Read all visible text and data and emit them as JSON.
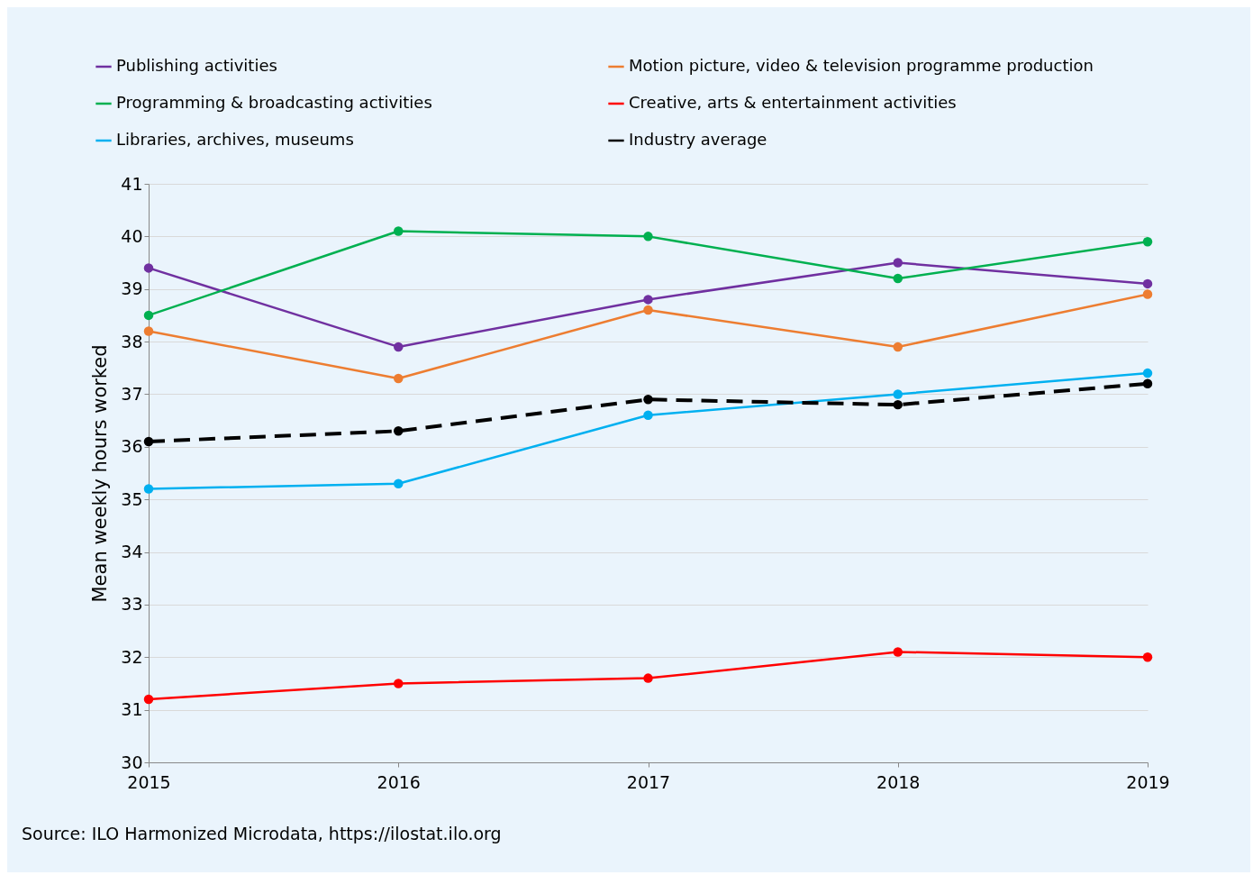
{
  "chart_data": {
    "type": "line",
    "ylabel": "Mean weekly hours worked",
    "x": [
      2015,
      2016,
      2017,
      2018,
      2019
    ],
    "xlim": [
      2015,
      2019
    ],
    "xticks": [
      2015,
      2016,
      2017,
      2018,
      2019
    ],
    "ylim": [
      30,
      41
    ],
    "yticks": [
      30,
      31,
      32,
      33,
      34,
      35,
      36,
      37,
      38,
      39,
      40,
      41
    ],
    "grid": "y",
    "legend": "top",
    "marker": "circle",
    "series": [
      {
        "name": "Publishing activities",
        "color": "#7030a0",
        "values": [
          39.4,
          37.9,
          38.8,
          39.5,
          39.1
        ]
      },
      {
        "name": "Motion picture, video & television programme production",
        "color": "#ed7d31",
        "values": [
          38.2,
          37.3,
          38.6,
          37.9,
          38.9
        ]
      },
      {
        "name": "Programming & broadcasting activities",
        "color": "#00b050",
        "values": [
          38.5,
          40.1,
          40.0,
          39.2,
          39.9
        ]
      },
      {
        "name": "Creative, arts & entertainment activities",
        "color": "#ff0000",
        "values": [
          31.2,
          31.5,
          31.6,
          32.1,
          32.0
        ]
      },
      {
        "name": "Libraries, archives, museums",
        "color": "#00b0f0",
        "values": [
          35.2,
          35.3,
          36.6,
          37.0,
          37.4
        ]
      },
      {
        "name": "Industry average",
        "color": "#000000",
        "line_style": "dashed",
        "values": [
          36.1,
          36.3,
          36.9,
          36.8,
          37.2
        ]
      }
    ],
    "annotations": [
      "Source: ILO Harmonized Microdata, https://ilostat.ilo.org"
    ]
  }
}
